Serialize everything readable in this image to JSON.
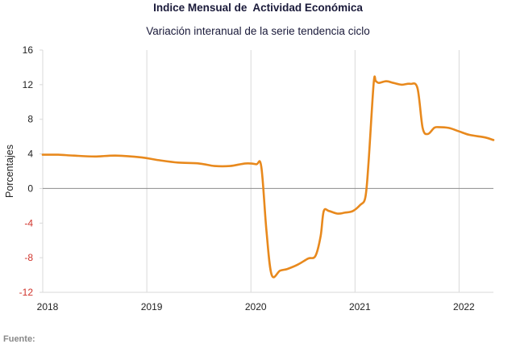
{
  "title": "Indice Mensual de  Actividad Económica",
  "subtitle": "Variación interanual de la serie tendencia ciclo",
  "source_label": "Fuente:",
  "colors": {
    "line": "#e8891d",
    "negative_tick": "#d0342c",
    "positive_tick": "#222222",
    "grid": "#d9d9d9",
    "zero_line": "#8c8c8c"
  },
  "chart_data": {
    "type": "line",
    "title": "Indice Mensual de  Actividad Económica",
    "subtitle": "Variación interanual de la serie tendencia ciclo",
    "xlabel": "",
    "ylabel": "Porcentajes",
    "xlim": [
      2018.0,
      2022.4
    ],
    "ylim": [
      -12,
      16
    ],
    "y_ticks": [
      -12,
      -8,
      -4,
      0,
      4,
      8,
      12,
      16
    ],
    "x_ticks": [
      2018,
      2019,
      2020,
      2021,
      2022
    ],
    "x_tick_labels": [
      "2018",
      "2019",
      "2020",
      "2021",
      "2022"
    ],
    "grid": "vertical",
    "legend": "none",
    "series": [
      {
        "x": [
          2018.0,
          2018.15,
          2018.3,
          2018.5,
          2018.7,
          2018.95,
          2019.1,
          2019.3,
          2019.5,
          2019.65,
          2019.8,
          2019.95,
          2020.05,
          2020.1,
          2020.15,
          2020.2,
          2020.28,
          2020.35,
          2020.45,
          2020.55,
          2020.62,
          2020.67,
          2020.7,
          2020.75,
          2020.83,
          2020.9,
          2020.98,
          2021.05,
          2021.1,
          2021.13,
          2021.18,
          2021.2,
          2021.23,
          2021.3,
          2021.37,
          2021.45,
          2021.53,
          2021.6,
          2021.65,
          2021.7,
          2021.76,
          2021.8,
          2021.9,
          2022.0,
          2022.1,
          2022.25,
          2022.33
        ],
        "y": [
          3.9,
          3.9,
          3.8,
          3.7,
          3.8,
          3.6,
          3.3,
          3.0,
          2.9,
          2.6,
          2.6,
          2.9,
          2.8,
          2.5,
          -5.0,
          -10.0,
          -9.5,
          -9.3,
          -8.8,
          -8.1,
          -7.8,
          -5.5,
          -2.6,
          -2.6,
          -2.9,
          -2.8,
          -2.6,
          -1.9,
          -1.0,
          3.0,
          12.2,
          12.4,
          12.2,
          12.4,
          12.2,
          12.0,
          12.1,
          11.6,
          7.0,
          6.3,
          7.0,
          7.1,
          7.0,
          6.6,
          6.2,
          5.9,
          5.6
        ]
      }
    ]
  }
}
